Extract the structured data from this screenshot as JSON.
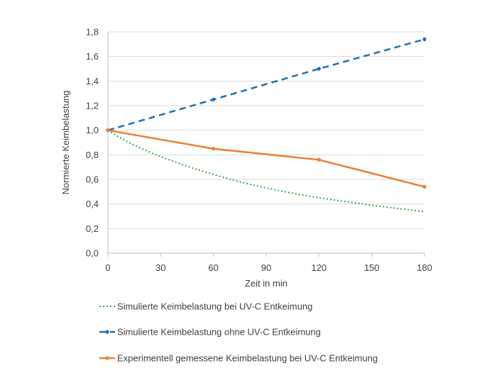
{
  "chart_data": {
    "type": "line",
    "xlabel": "Zeit in min",
    "ylabel": "Normierte Keimbelastung",
    "xlim": [
      0,
      180
    ],
    "ylim": [
      0,
      1.8
    ],
    "x_ticks": [
      0,
      30,
      60,
      90,
      120,
      150,
      180
    ],
    "y_ticks": [
      "0,0",
      "0,2",
      "0,4",
      "0,6",
      "0,8",
      "1,0",
      "1,2",
      "1,4",
      "1,6",
      "1,8"
    ],
    "grid": "horizontal",
    "legend_position": "bottom",
    "series": [
      {
        "name": "Simulierte Keimbelastung bei UV-C Entkeimung",
        "color": "#3aa64c",
        "style": "dotted",
        "markers": false,
        "x": [
          0,
          10,
          20,
          30,
          40,
          50,
          60,
          70,
          80,
          90,
          100,
          110,
          120,
          130,
          140,
          150,
          160,
          170,
          180
        ],
        "y": [
          1.0,
          0.913,
          0.845,
          0.785,
          0.733,
          0.684,
          0.64,
          0.6,
          0.563,
          0.53,
          0.502,
          0.475,
          0.452,
          0.43,
          0.41,
          0.39,
          0.372,
          0.355,
          0.338
        ]
      },
      {
        "name": "Simulierte Keimbelastung ohne UV-C Entkeimung",
        "color": "#1f6fb1",
        "style": "dashed",
        "markers": true,
        "x": [
          0,
          60,
          120,
          180
        ],
        "y": [
          1.0,
          1.25,
          1.5,
          1.74
        ]
      },
      {
        "name": "Experimentell gemessene Keimbelastung bei UV-C Entkeimung",
        "color": "#ed7d31",
        "style": "solid",
        "markers": true,
        "x": [
          0,
          60,
          120,
          180
        ],
        "y": [
          1.0,
          0.85,
          0.76,
          0.54
        ]
      }
    ]
  }
}
